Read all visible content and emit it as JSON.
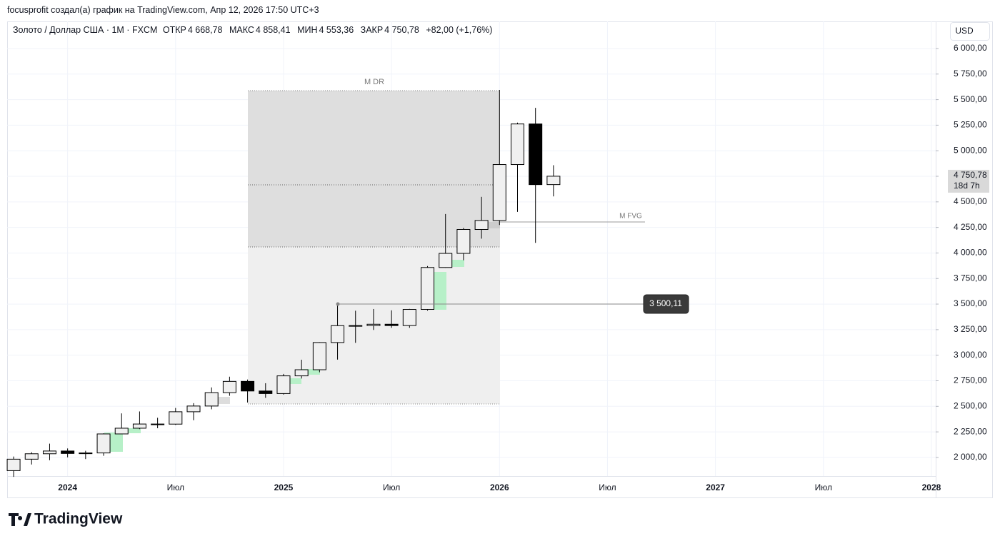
{
  "attribution": "focusprofit создал(а) график на TradingView.com, Апр 12, 2026 17:50 UTC+3",
  "header": {
    "symbol": "Золото / Доллар США · 1M · FXCM",
    "open_label": "ОТКР",
    "open": "4 668,78",
    "high_label": "МАКС",
    "high": "4 858,41",
    "low_label": "МИН",
    "low": "4 553,36",
    "close_label": "ЗАКР",
    "close": "4 750,78",
    "change": "+82,00 (+1,76%)"
  },
  "currency": "USD",
  "logo": "TradingView",
  "chart_data": {
    "type": "candlestick",
    "x": [
      2023.75,
      2023.8333,
      2023.9167,
      2024,
      2024.0833,
      2024.1667,
      2024.25,
      2024.3333,
      2024.4167,
      2024.5,
      2024.5833,
      2024.6667,
      2024.75,
      2024.8333,
      2024.9167,
      2025,
      2025.0833,
      2025.1667,
      2025.25,
      2025.3333,
      2025.4167,
      2025.5,
      2025.5833,
      2025.6667,
      2025.75,
      2025.8333,
      2025.9167,
      2026,
      2026.0833,
      2026.1667,
      2026.25
    ],
    "open": [
      1871,
      1983,
      2036,
      2063,
      2039,
      2044,
      2230,
      2286,
      2327,
      2326,
      2447,
      2503,
      2634,
      2744,
      2650,
      2625,
      2798,
      2858,
      3124,
      3289,
      3290,
      3303,
      3290,
      3448,
      3858,
      3996,
      4230,
      4318,
      4865,
      5262,
      4668.78
    ],
    "high": [
      2009,
      2052,
      2135,
      2088,
      2065,
      2236,
      2431,
      2450,
      2388,
      2484,
      2531,
      2685,
      2790,
      2762,
      2726,
      2817,
      2956,
      3128,
      3500,
      3435,
      3452,
      3439,
      3453,
      3872,
      4381,
      4245,
      4549,
      5595,
      5275,
      5419,
      4858.41
    ],
    "low": [
      1810,
      1931,
      1973,
      2001,
      1984,
      2016,
      2228,
      2277,
      2286,
      2318,
      2364,
      2471,
      2603,
      2537,
      2583,
      2615,
      2772,
      2833,
      2957,
      3121,
      3247,
      3268,
      3268,
      3436,
      3855,
      3929,
      4140,
      4274,
      4402,
      4099,
      4553.36
    ],
    "close": [
      1983,
      2036,
      2063,
      2039,
      2044,
      2230,
      2286,
      2327,
      2326,
      2447,
      2503,
      2634,
      2744,
      2650,
      2625,
      2798,
      2858,
      3124,
      3289,
      3290,
      3303,
      3290,
      3448,
      3858,
      3996,
      4230,
      4318,
      4865,
      5262,
      4668.78,
      4750.78
    ],
    "up_color": "#f0f0f0",
    "down_color": "#000000",
    "border_color": "#000000",
    "xlim": [
      2023.72,
      2028.02
    ],
    "xticks": [
      2024,
      {
        "value": 2024.5,
        "label": "Июл"
      },
      2025,
      {
        "value": 2025.5,
        "label": "Июл"
      },
      2026,
      {
        "value": 2026.5,
        "label": "Июл"
      },
      2027,
      {
        "value": 2027.5,
        "label": "Июл"
      },
      2028
    ],
    "ylim": [
      1818,
      6265
    ],
    "yticks": [
      {
        "value": 2000,
        "label": "2 000,00"
      },
      {
        "value": 2250,
        "label": "2 250,00"
      },
      {
        "value": 2500,
        "label": "2 500,00"
      },
      {
        "value": 2750,
        "label": "2 750,00"
      },
      {
        "value": 3000,
        "label": "3 000,00"
      },
      {
        "value": 3250,
        "label": "3 250,00"
      },
      {
        "value": 3500,
        "label": "3 500,00"
      },
      {
        "value": 3750,
        "label": "3 750,00"
      },
      {
        "value": 4000,
        "label": "4 000,00"
      },
      {
        "value": 4250,
        "label": "4 250,00"
      },
      {
        "value": 4500,
        "label": "4 500,00"
      },
      {
        "value": 4750,
        "label": "4 750,00"
      },
      {
        "value": 5000,
        "label": "5 000,00"
      },
      {
        "value": 5250,
        "label": "5 250,00"
      },
      {
        "value": 5500,
        "label": "5 500,00"
      },
      {
        "value": 5750,
        "label": "5 750,00"
      },
      {
        "value": 6000,
        "label": "6 000,00"
      }
    ],
    "grid": true,
    "annotations": [
      "M DR",
      "M FVG"
    ],
    "price_line": {
      "value": 3500.11,
      "label": "3 500,11"
    },
    "last_price": {
      "value": 4750.78,
      "label": "4 750,78"
    },
    "countdown": "18d 7h"
  }
}
